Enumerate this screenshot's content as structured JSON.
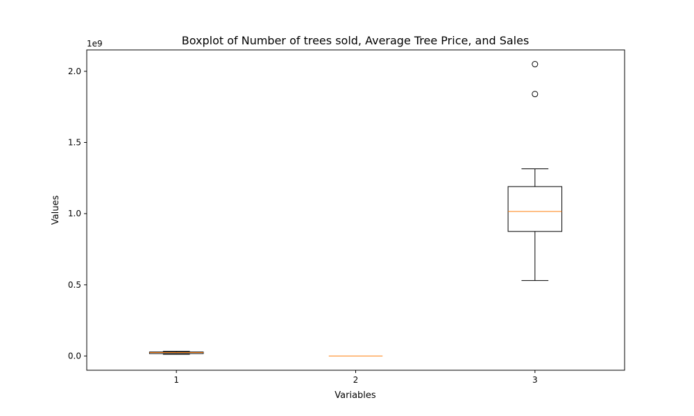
{
  "chart_data": {
    "type": "boxplot",
    "title": "Boxplot of Number of trees sold, Average Tree Price, and Sales",
    "xlabel": "Variables",
    "ylabel": "Values",
    "y_offset_label": "1e9",
    "y_scale": 1000000000,
    "ylim": [
      -100000000,
      2150000000
    ],
    "y_ticks": [
      0,
      500000000,
      1000000000,
      1500000000,
      2000000000
    ],
    "y_tick_labels": [
      "0.0",
      "0.5",
      "1.0",
      "1.5",
      "2.0"
    ],
    "categories": [
      "1",
      "2",
      "3"
    ],
    "boxes": [
      {
        "whisker_low": 12000000,
        "q1": 17000000,
        "median": 24000000,
        "q3": 28000000,
        "whisker_high": 33000000,
        "outliers": []
      },
      {
        "whisker_low": 0,
        "q1": 0,
        "median": 0,
        "q3": 0,
        "whisker_high": 0,
        "outliers": []
      },
      {
        "whisker_low": 530000000,
        "q1": 875000000,
        "median": 1015000000,
        "q3": 1190000000,
        "whisker_high": 1315000000,
        "outliers": [
          1840000000,
          2050000000
        ]
      }
    ],
    "colors": {
      "box": "#000000",
      "median": "#ff7f0e",
      "outlier": "#000000"
    },
    "grid": false
  }
}
